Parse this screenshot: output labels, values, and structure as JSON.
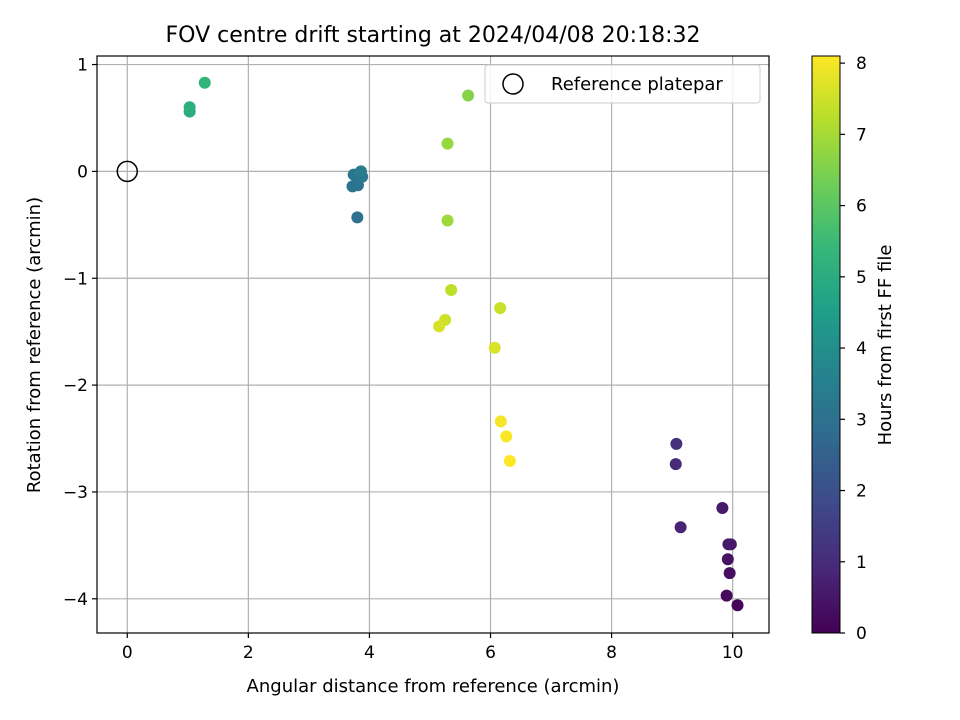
{
  "chart_data": {
    "type": "scatter",
    "title": "FOV centre drift starting at 2024/04/08 20:18:32",
    "xlabel": "Angular distance from reference (arcmin)",
    "ylabel": "Rotation from reference (arcmin)",
    "xlim": [
      -0.5,
      10.6
    ],
    "ylim": [
      -4.32,
      1.08
    ],
    "xticks": [
      0,
      2,
      4,
      6,
      8,
      10
    ],
    "xtick_labels": [
      "0",
      "2",
      "4",
      "6",
      "8",
      "10"
    ],
    "yticks": [
      1,
      0,
      -1,
      -2,
      -3,
      -4
    ],
    "ytick_labels": [
      "1",
      "0",
      "−1",
      "−2",
      "−3",
      "−4"
    ],
    "grid": true,
    "legend": {
      "placement": "upper right",
      "entries": [
        "Reference platepar"
      ]
    },
    "reference_point": {
      "name": "Reference platepar",
      "x": 0,
      "y": 0
    },
    "colorbar": {
      "label": "Hours from first FF file",
      "min": 0,
      "max": 8.1,
      "ticks": [
        0,
        1,
        2,
        3,
        4,
        5,
        6,
        7,
        8
      ],
      "tick_labels": [
        "0",
        "1",
        "2",
        "3",
        "4",
        "5",
        "6",
        "7",
        "8"
      ],
      "colormap": [
        "#440154",
        "#482878",
        "#3e4989",
        "#31688e",
        "#26828e",
        "#1f9e89",
        "#35b779",
        "#6ece58",
        "#b5de2b",
        "#fde725"
      ]
    },
    "points": [
      {
        "x": 10.08,
        "y": -4.06,
        "hours": 0.1
      },
      {
        "x": 9.9,
        "y": -3.97,
        "hours": 0.2
      },
      {
        "x": 9.95,
        "y": -3.76,
        "hours": 0.3
      },
      {
        "x": 9.92,
        "y": -3.63,
        "hours": 0.4
      },
      {
        "x": 9.93,
        "y": -3.49,
        "hours": 0.5
      },
      {
        "x": 9.97,
        "y": -3.49,
        "hours": 0.55
      },
      {
        "x": 9.83,
        "y": -3.15,
        "hours": 0.6
      },
      {
        "x": 9.14,
        "y": -3.33,
        "hours": 0.8
      },
      {
        "x": 9.06,
        "y": -2.74,
        "hours": 1.0
      },
      {
        "x": 9.07,
        "y": -2.55,
        "hours": 1.1
      },
      {
        "x": 3.8,
        "y": -0.43,
        "hours": 3.0
      },
      {
        "x": 3.72,
        "y": -0.14,
        "hours": 3.1
      },
      {
        "x": 3.81,
        "y": -0.13,
        "hours": 3.15
      },
      {
        "x": 3.74,
        "y": -0.03,
        "hours": 3.2
      },
      {
        "x": 3.83,
        "y": -0.02,
        "hours": 3.25
      },
      {
        "x": 3.88,
        "y": -0.05,
        "hours": 3.3
      },
      {
        "x": 3.86,
        "y": 0.0,
        "hours": 3.35
      },
      {
        "x": 1.03,
        "y": 0.56,
        "hours": 5.0
      },
      {
        "x": 1.03,
        "y": 0.6,
        "hours": 5.1
      },
      {
        "x": 1.28,
        "y": 0.83,
        "hours": 5.3
      },
      {
        "x": 5.63,
        "y": 0.71,
        "hours": 6.6
      },
      {
        "x": 5.29,
        "y": 0.26,
        "hours": 6.8
      },
      {
        "x": 5.29,
        "y": -0.46,
        "hours": 6.9
      },
      {
        "x": 5.35,
        "y": -1.11,
        "hours": 7.3
      },
      {
        "x": 6.16,
        "y": -1.28,
        "hours": 7.45
      },
      {
        "x": 5.25,
        "y": -1.39,
        "hours": 7.5
      },
      {
        "x": 5.15,
        "y": -1.45,
        "hours": 7.6
      },
      {
        "x": 6.07,
        "y": -1.65,
        "hours": 7.65
      },
      {
        "x": 6.17,
        "y": -2.34,
        "hours": 8.0
      },
      {
        "x": 6.26,
        "y": -2.48,
        "hours": 8.05
      },
      {
        "x": 6.32,
        "y": -2.71,
        "hours": 8.1
      }
    ]
  }
}
